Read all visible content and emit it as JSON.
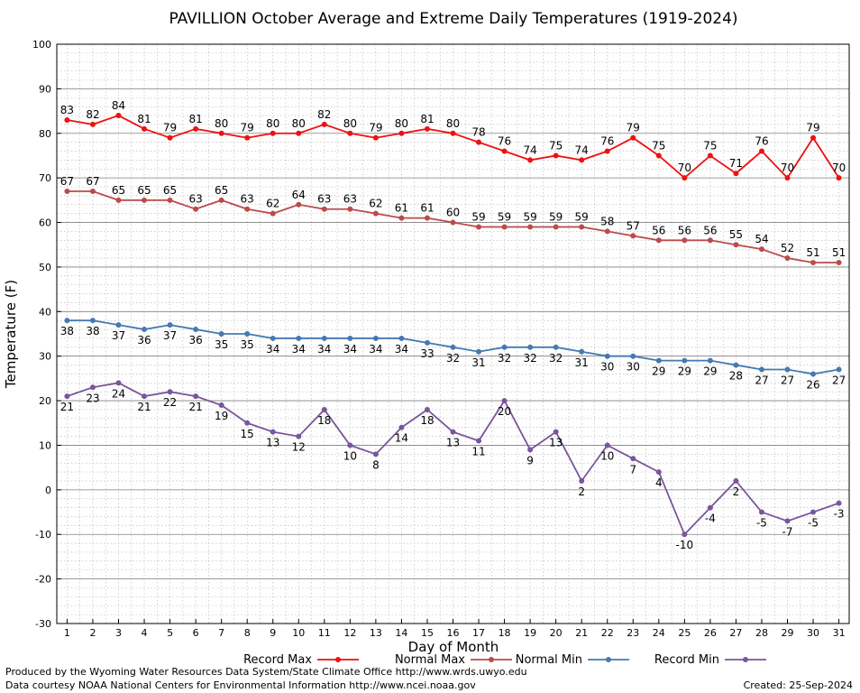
{
  "title": "PAVILLION October Average and Extreme Daily Temperatures (1919-2024)",
  "credits": {
    "line1": "Produced by the Wyoming Water Resources Data System/State Climate Office http://www.wrds.uwyo.edu",
    "line2": "Data courtesy NOAA National Centers for Environmental Information http://www.ncei.noaa.gov",
    "created": "Created:  25-Sep-2024"
  },
  "chart_data": {
    "type": "line",
    "title": "PAVILLION October Average and Extreme Daily Temperatures (1919-2024)",
    "xlabel": "Day of Month",
    "ylabel": "Temperature (F)",
    "xlim": [
      0.6,
      31.4
    ],
    "ylim": [
      -30,
      100
    ],
    "yticks": [
      -30,
      -20,
      -10,
      0,
      10,
      20,
      30,
      40,
      50,
      60,
      70,
      80,
      90,
      100
    ],
    "grid": true,
    "legend": "bottom",
    "x": [
      1,
      2,
      3,
      4,
      5,
      6,
      7,
      8,
      9,
      10,
      11,
      12,
      13,
      14,
      15,
      16,
      17,
      18,
      19,
      20,
      21,
      22,
      23,
      24,
      25,
      26,
      27,
      28,
      29,
      30,
      31
    ],
    "series": [
      {
        "name": "Record Max",
        "color": "#ee1111",
        "labelpos": "above",
        "values": [
          83,
          82,
          84,
          81,
          79,
          81,
          80,
          79,
          80,
          80,
          82,
          80,
          79,
          80,
          81,
          80,
          78,
          76,
          74,
          75,
          74,
          76,
          79,
          75,
          70,
          75,
          71,
          76,
          70,
          79,
          70
        ]
      },
      {
        "name": "Normal Max",
        "color": "#bb4b4b",
        "labelpos": "above",
        "values": [
          67,
          67,
          65,
          65,
          65,
          63,
          65,
          63,
          62,
          64,
          63,
          63,
          62,
          61,
          61,
          60,
          59,
          59,
          59,
          59,
          59,
          58,
          57,
          56,
          56,
          56,
          55,
          54,
          52,
          51,
          51
        ]
      },
      {
        "name": "Normal Min",
        "color": "#4679b2",
        "labelpos": "below",
        "values": [
          38,
          38,
          37,
          36,
          37,
          36,
          35,
          35,
          34,
          34,
          34,
          34,
          34,
          34,
          33,
          32,
          31,
          32,
          32,
          32,
          31,
          30,
          30,
          29,
          29,
          29,
          28,
          27,
          27,
          26,
          27
        ]
      },
      {
        "name": "Record Min",
        "color": "#7a559b",
        "labelpos": "below",
        "values": [
          21,
          23,
          24,
          21,
          22,
          21,
          19,
          15,
          13,
          12,
          18,
          10,
          8,
          14,
          18,
          13,
          11,
          20,
          9,
          13,
          2,
          10,
          7,
          4,
          -10,
          -4,
          2,
          -5,
          -7,
          -5,
          -3
        ]
      }
    ]
  }
}
